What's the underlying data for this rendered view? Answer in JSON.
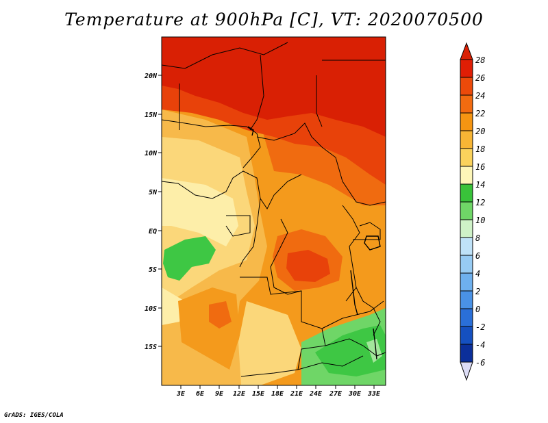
{
  "title": "Temperature at 900hPa [C], VT: 2020070500",
  "footer": "GrADS: IGES/COLA",
  "axes": {
    "lat_labels": [
      "20N",
      "15N",
      "10N",
      "5N",
      "EQ",
      "5S",
      "10S",
      "15S"
    ],
    "lon_labels": [
      "3E",
      "6E",
      "9E",
      "12E",
      "15E",
      "18E",
      "21E",
      "24E",
      "27E",
      "30E",
      "33E"
    ]
  },
  "colorbar": {
    "levels": [
      "28",
      "26",
      "24",
      "22",
      "20",
      "18",
      "16",
      "14",
      "12",
      "10",
      "8",
      "6",
      "4",
      "2",
      "0",
      "-2",
      "-4",
      "-6"
    ],
    "colors": [
      "#e01e05",
      "#ec4a0a",
      "#f26b10",
      "#f59512",
      "#f7b535",
      "#fad25c",
      "#fbe98c",
      "#fdf6b8",
      "#39c23a",
      "#6fd667",
      "#a2e69a",
      "#cff2c8",
      "#bfe2f8",
      "#97cbf3",
      "#6eb0ee",
      "#4a92e6",
      "#2a6fd8",
      "#1550c0",
      "#0b2f9a",
      "#061370"
    ]
  },
  "map": {
    "colors": {
      "c28": "#d92004",
      "c26": "#e8420a",
      "c24": "#f06b10",
      "c22": "#f49a1c",
      "c20": "#f7b94a",
      "c18": "#fbd77a",
      "c16": "#fdeea9",
      "g14": "#3ec744",
      "g12": "#6fd667",
      "g10": "#a3e69b"
    }
  }
}
